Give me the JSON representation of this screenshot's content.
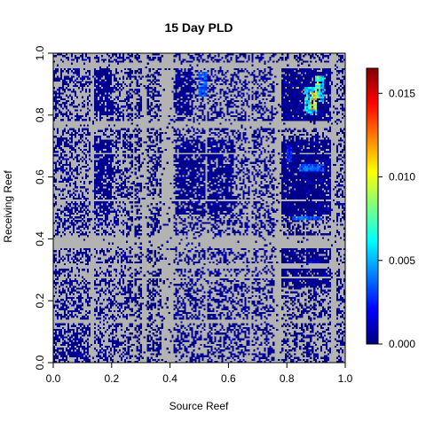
{
  "chart_data": {
    "type": "heatmap",
    "title": "15 Day PLD",
    "xlabel": "Source Reef",
    "ylabel": "Receiving Reef",
    "xlim": [
      0,
      1
    ],
    "ylim": [
      0,
      1
    ],
    "x_ticks": [
      0.0,
      0.2,
      0.4,
      0.6,
      0.8,
      1.0
    ],
    "x_tick_labels": [
      "0.0",
      "0.2",
      "0.4",
      "0.6",
      "0.8",
      "1.0"
    ],
    "y_ticks": [
      0.0,
      0.2,
      0.4,
      0.6,
      0.8,
      1.0
    ],
    "y_tick_labels": [
      "0.0",
      "0.2",
      "0.4",
      "0.6",
      "0.8",
      "1.0"
    ],
    "na_color": "#b3b3b3",
    "low_color": "#00008b",
    "colorbar": {
      "range": [
        0,
        0.0165
      ],
      "ticks": [
        0.0,
        0.005,
        0.01,
        0.015
      ],
      "tick_labels": [
        "0.000",
        "0.005",
        "0.010",
        "0.015"
      ],
      "colors": [
        "#00007f",
        "#0000ff",
        "#007fff",
        "#00ffff",
        "#7fff7f",
        "#ffff00",
        "#ff7f00",
        "#ff0000",
        "#7f0000"
      ]
    },
    "sparse_bands": [
      [
        0.13,
        0.14
      ],
      [
        0.27,
        0.28
      ],
      [
        0.305,
        0.32
      ],
      [
        0.37,
        0.41
      ],
      [
        0.52,
        0.53
      ],
      [
        0.67,
        0.68
      ],
      [
        0.76,
        0.78
      ],
      [
        0.95,
        0.97
      ]
    ],
    "dense_blocks": [
      {
        "x": [
          0.14,
          0.2
        ],
        "y": [
          0.8,
          0.95
        ],
        "density": 0.8
      },
      {
        "x": [
          0.42,
          0.48
        ],
        "y": [
          0.8,
          0.95
        ],
        "density": 0.85
      },
      {
        "x": [
          0.78,
          0.95
        ],
        "y": [
          0.78,
          0.95
        ],
        "density": 0.9
      },
      {
        "x": [
          0.78,
          0.95
        ],
        "y": [
          0.48,
          0.72
        ],
        "density": 0.9
      },
      {
        "x": [
          0.78,
          0.95
        ],
        "y": [
          0.24,
          0.42
        ],
        "density": 0.85
      },
      {
        "x": [
          0.14,
          0.2
        ],
        "y": [
          0.48,
          0.72
        ],
        "density": 0.8
      },
      {
        "x": [
          0.42,
          0.62
        ],
        "y": [
          0.48,
          0.72
        ],
        "density": 0.8
      },
      {
        "x": [
          0.0,
          0.12
        ],
        "y": [
          0.0,
          0.14
        ],
        "density": 0.6
      }
    ],
    "hot_spots": [
      {
        "x": [
          0.86,
          0.9
        ],
        "y": [
          0.8,
          0.89
        ],
        "value": 0.0065
      },
      {
        "x": [
          0.88,
          0.9
        ],
        "y": [
          0.82,
          0.87
        ],
        "value": 0.0115
      },
      {
        "x": [
          0.9,
          0.915
        ],
        "y": [
          0.84,
          0.93
        ],
        "value": 0.009
      },
      {
        "x": [
          0.91,
          0.925
        ],
        "y": [
          0.84,
          0.93
        ],
        "value": 0.0055
      },
      {
        "x": [
          0.5,
          0.53
        ],
        "y": [
          0.86,
          0.94
        ],
        "value": 0.004
      },
      {
        "x": [
          0.84,
          0.93
        ],
        "y": [
          0.62,
          0.64
        ],
        "value": 0.004
      },
      {
        "x": [
          0.82,
          0.92
        ],
        "y": [
          0.46,
          0.47
        ],
        "value": 0.004
      },
      {
        "x": [
          0.86,
          0.92
        ],
        "y": [
          0.32,
          0.33
        ],
        "value": 0.0025
      },
      {
        "x": [
          0.8,
          0.82
        ],
        "y": [
          0.65,
          0.7
        ],
        "value": 0.003
      }
    ]
  }
}
